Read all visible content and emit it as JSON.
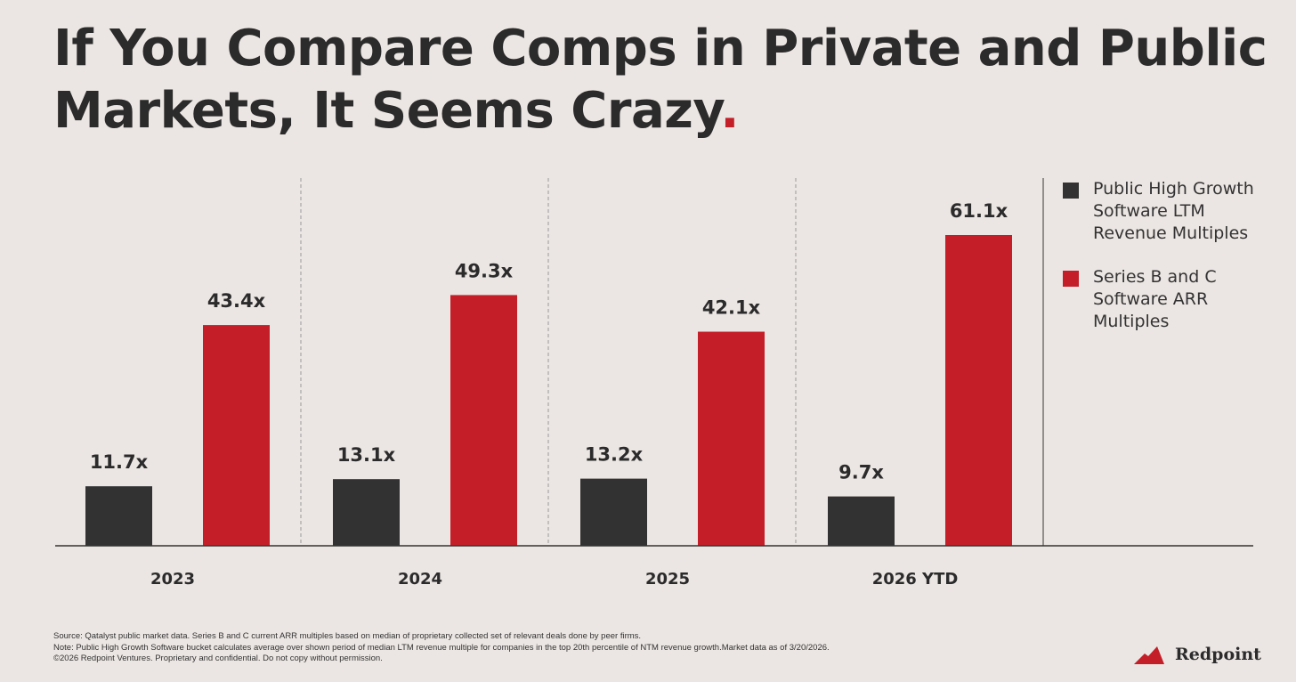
{
  "title": {
    "text": "If You Compare Comps in Private and Public Markets, It Seems Crazy",
    "dot": "."
  },
  "chart_data": {
    "type": "bar",
    "categories": [
      "2023",
      "2024",
      "2025",
      "2026 YTD"
    ],
    "series": [
      {
        "name": "Public High Growth Software LTM Revenue Multiples",
        "color": "#323232",
        "values": [
          11.7,
          13.1,
          13.2,
          9.7
        ],
        "labels": [
          "11.7x",
          "13.1x",
          "13.2x",
          "9.7x"
        ]
      },
      {
        "name": "Series B and C Software ARR Multiples",
        "color": "#c41f28",
        "values": [
          43.4,
          49.3,
          42.1,
          61.1
        ],
        "labels": [
          "43.4x",
          "49.3x",
          "42.1x",
          "61.1x"
        ]
      }
    ],
    "ylim": [
      0,
      70
    ],
    "grid": false,
    "legend": "right"
  },
  "footnotes": [
    "Source: Qatalyst public market data. Series B and C current ARR multiples based on median of proprietary collected set of relevant deals done by peer firms.",
    "Note: Public High Growth Software bucket calculates average over shown period of median LTM revenue multiple for companies in the top 20th percentile of NTM revenue growth.Market data as of 3/20/2026.",
    "©2026 Redpoint Ventures. Proprietary and confidential. Do not copy without permission."
  ],
  "logo": {
    "text": "Redpoint"
  }
}
